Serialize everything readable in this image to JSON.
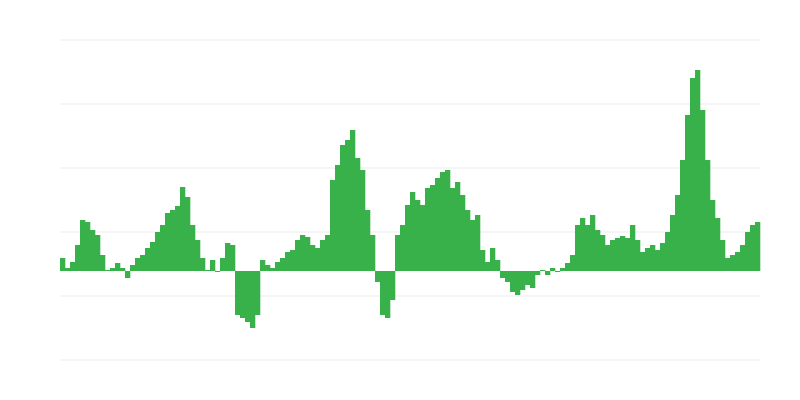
{
  "chart_data": {
    "type": "bar",
    "title": "",
    "xlabel": "",
    "ylabel": "",
    "grid": true,
    "ylim": [
      -89,
      231
    ],
    "gridlines": [
      231,
      167,
      103,
      39,
      -25,
      -89
    ],
    "bar_color": "#39b14b",
    "grid_color": "#ebebeb",
    "values": [
      13,
      3,
      9,
      26,
      51,
      49,
      41,
      36,
      16,
      1,
      3,
      8,
      3,
      -7,
      6,
      13,
      16,
      23,
      29,
      39,
      46,
      58,
      61,
      65,
      84,
      74,
      46,
      31,
      13,
      1,
      11,
      -1,
      13,
      28,
      26,
      -44,
      -47,
      -51,
      -57,
      -44,
      11,
      6,
      3,
      9,
      13,
      19,
      21,
      31,
      36,
      34,
      26,
      23,
      31,
      36,
      91,
      106,
      126,
      131,
      141,
      113,
      101,
      61,
      36,
      -11,
      -44,
      -47,
      -29,
      36,
      46,
      66,
      79,
      71,
      66,
      83,
      86,
      93,
      99,
      101,
      83,
      89,
      76,
      61,
      51,
      56,
      21,
      9,
      23,
      11,
      -7,
      -11,
      -21,
      -24,
      -19,
      -14,
      -17,
      -4,
      1,
      -4,
      3,
      -1,
      3,
      8,
      16,
      46,
      53,
      46,
      56,
      41,
      36,
      26,
      31,
      33,
      35,
      33,
      46,
      31,
      19,
      23,
      26,
      21,
      28,
      39,
      56,
      76,
      111,
      156,
      193,
      201,
      161,
      111,
      71,
      53,
      31,
      13,
      16,
      19,
      26,
      39,
      46,
      49
    ]
  }
}
